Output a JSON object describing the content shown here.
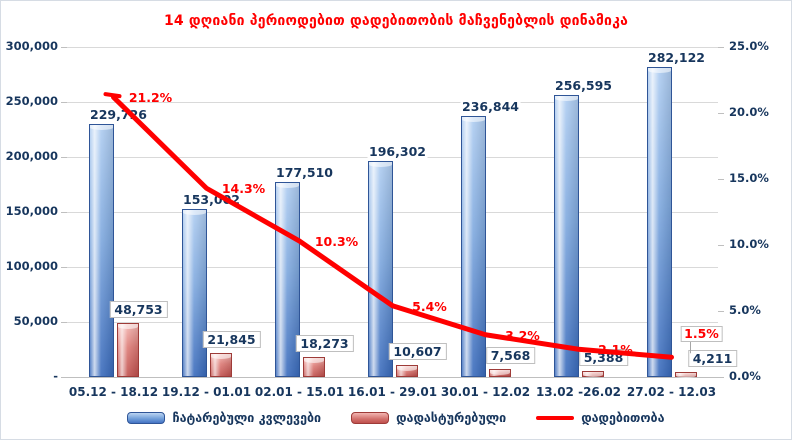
{
  "title": "14 დღიანი პერიოდებით დადებითობის მაჩვენებლის დინამიკა",
  "colors": {
    "title": "#FF0000",
    "axis_text": "#17365D",
    "gridline": "#D9D9D9",
    "tests_bar": "#7FA9DF",
    "confirmed_bar": "#DD7B76",
    "positivity_line": "#FF0000"
  },
  "chart_data": {
    "type": "combo",
    "title": "14 დღიანი პერიოდებით დადებითობის მაჩვენებლის დინამიკა",
    "categories": [
      "05.12 - 18.12",
      "19.12 - 01.01",
      "02.01 - 15.01",
      "16.01 - 29.01",
      "30.01 - 12.02",
      "13.02 -26.02",
      "27.02 - 12.03"
    ],
    "series": [
      {
        "name": "ჩატარებული კვლევები",
        "type": "bar",
        "axis": "left",
        "values": [
          229726,
          153002,
          177510,
          196302,
          236844,
          256595,
          282122
        ],
        "labels": [
          "229,726",
          "153,002",
          "177,510",
          "196,302",
          "236,844",
          "256,595",
          "282,122"
        ]
      },
      {
        "name": "დადასტურებული",
        "type": "bar",
        "axis": "left",
        "values": [
          48753,
          21845,
          18273,
          10607,
          7568,
          5388,
          4211
        ],
        "labels": [
          "48,753",
          "21,845",
          "18,273",
          "10,607",
          "7,568",
          "5,388",
          "4,211"
        ]
      },
      {
        "name": "დადებითობა",
        "type": "line",
        "axis": "right",
        "values": [
          21.2,
          14.3,
          10.3,
          5.4,
          3.2,
          2.1,
          1.5
        ],
        "labels": [
          "21.2%",
          "14.3%",
          "10.3%",
          "5.4%",
          "3.2%",
          "2.1%",
          "1.5%"
        ]
      }
    ],
    "left_axis": {
      "min": 0,
      "max": 300000,
      "step": 50000,
      "tick_labels": [
        "300,000",
        "250,000",
        "200,000",
        "150,000",
        "100,000",
        "50,000",
        "-"
      ]
    },
    "right_axis": {
      "min": 0,
      "max": 25,
      "step": 5,
      "tick_labels": [
        "25.0%",
        "20.0%",
        "15.0%",
        "10.0%",
        "5.0%",
        "0.0%"
      ]
    },
    "grid": "horizontal",
    "legend_position": "bottom"
  }
}
